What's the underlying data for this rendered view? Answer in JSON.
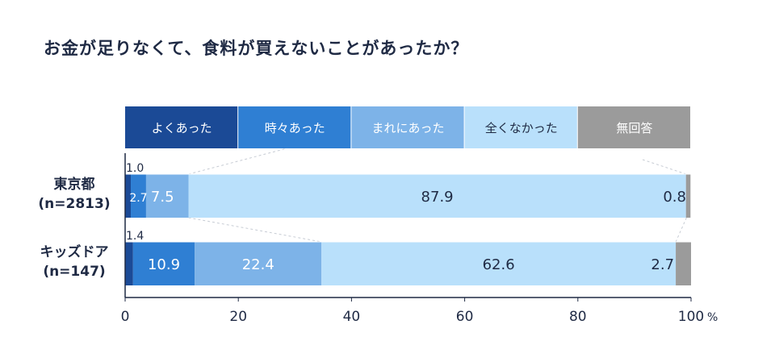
{
  "title": "お金が足りなくて、食料が買えないことがあったか？",
  "chart_data": {
    "type": "bar",
    "stacked": true,
    "orientation": "horizontal",
    "title": "お金が足りなくて、食料が買えないことがあったか？",
    "categories": [
      {
        "name": "東京都",
        "sub": "(n=2813)"
      },
      {
        "name": "キッズドア",
        "sub": "(n=147)"
      }
    ],
    "series": [
      {
        "name": "よくあった",
        "color": "#1b4a96",
        "values": [
          1.0,
          1.4
        ],
        "labels": [
          "1.0",
          "1.4"
        ]
      },
      {
        "name": "時々あった",
        "color": "#2f7fd3",
        "values": [
          2.7,
          10.9
        ],
        "labels": [
          "2.7",
          "10.9"
        ]
      },
      {
        "name": "まれにあった",
        "color": "#7db3e8",
        "values": [
          7.5,
          22.4
        ],
        "labels": [
          "7.5",
          "22.4"
        ]
      },
      {
        "name": "全くなかった",
        "color": "#b9e0fb",
        "values": [
          87.9,
          62.6
        ],
        "labels": [
          "87.9",
          "62.6"
        ]
      },
      {
        "name": "無回答",
        "color": "#9b9b9b",
        "values": [
          0.8,
          2.7
        ],
        "labels": [
          "0.8",
          "2.7"
        ]
      }
    ],
    "xlim": [
      0,
      100
    ],
    "xticks": [
      "0",
      "20",
      "40",
      "60",
      "80",
      "100"
    ],
    "x_unit": "%",
    "legend_position": "top"
  }
}
